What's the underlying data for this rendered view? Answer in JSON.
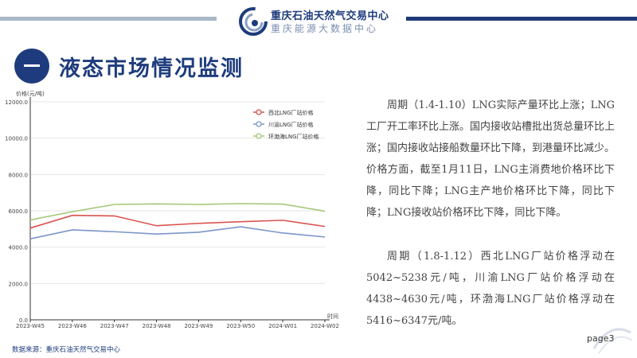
{
  "header": {
    "org_name": "重庆石油天然气交易中心",
    "org_sub": "重庆能源大数据中心",
    "logo_icon": "company-logo-swirl"
  },
  "section": {
    "title": "液态市场情况监测",
    "marker_icon": "dash-circle-icon"
  },
  "paragraphs": [
    "周期（1.4-1.10）LNG实际产量环比上涨；LNG工厂开工率环比上涨。国内接收站槽批出货总量环比上涨；国内接收站接船数量环比下降，到港量环比减少。价格方面，截至1月11日，LNG主消费地价格环比下降，同比下降；LNG主产地价格环比下降，同比下降；LNG接收站价格环比下降，同比下降。",
    "周期（1.8-1.12）西北LNG厂站价格浮动在5042~5238元/吨，川渝LNG厂站价格浮动在4438~4630元/吨，环渤海LNG厂站价格浮动在5416~6347元/吨。"
  ],
  "footer": {
    "source": "数据来源：重庆石油天然气交易中心",
    "page": "page3"
  },
  "chart_data": {
    "type": "line",
    "ylabel": "价格(元/吨)",
    "xlabel": "时间",
    "ylim": [
      0,
      12000
    ],
    "yticks": [
      0,
      2000,
      4000,
      6000,
      8000,
      10000,
      12000
    ],
    "ytick_labels": [
      "0.0",
      "2000.0",
      "4000.0",
      "6000.0",
      "8000.0",
      "10000.0",
      "12000.0"
    ],
    "categories": [
      "2023-W45",
      "2023-W46",
      "2023-W47",
      "2023-W48",
      "2023-W49",
      "2023-W50",
      "2024-W01",
      "2024-W02"
    ],
    "legend_position": "top-right",
    "series": [
      {
        "name": "西北LNG厂站价格",
        "color": "#d9534f",
        "values": [
          5050,
          5750,
          5720,
          5180,
          5310,
          5400,
          5480,
          5140
        ]
      },
      {
        "name": "川渝LNG厂站价格",
        "color": "#7b96c8",
        "values": [
          4460,
          4950,
          4850,
          4720,
          4820,
          5120,
          4780,
          4560
        ]
      },
      {
        "name": "环渤海LNG厂站价格",
        "color": "#a3c97a",
        "values": [
          5500,
          5950,
          6350,
          6380,
          6350,
          6400,
          6370,
          5980
        ]
      }
    ]
  }
}
